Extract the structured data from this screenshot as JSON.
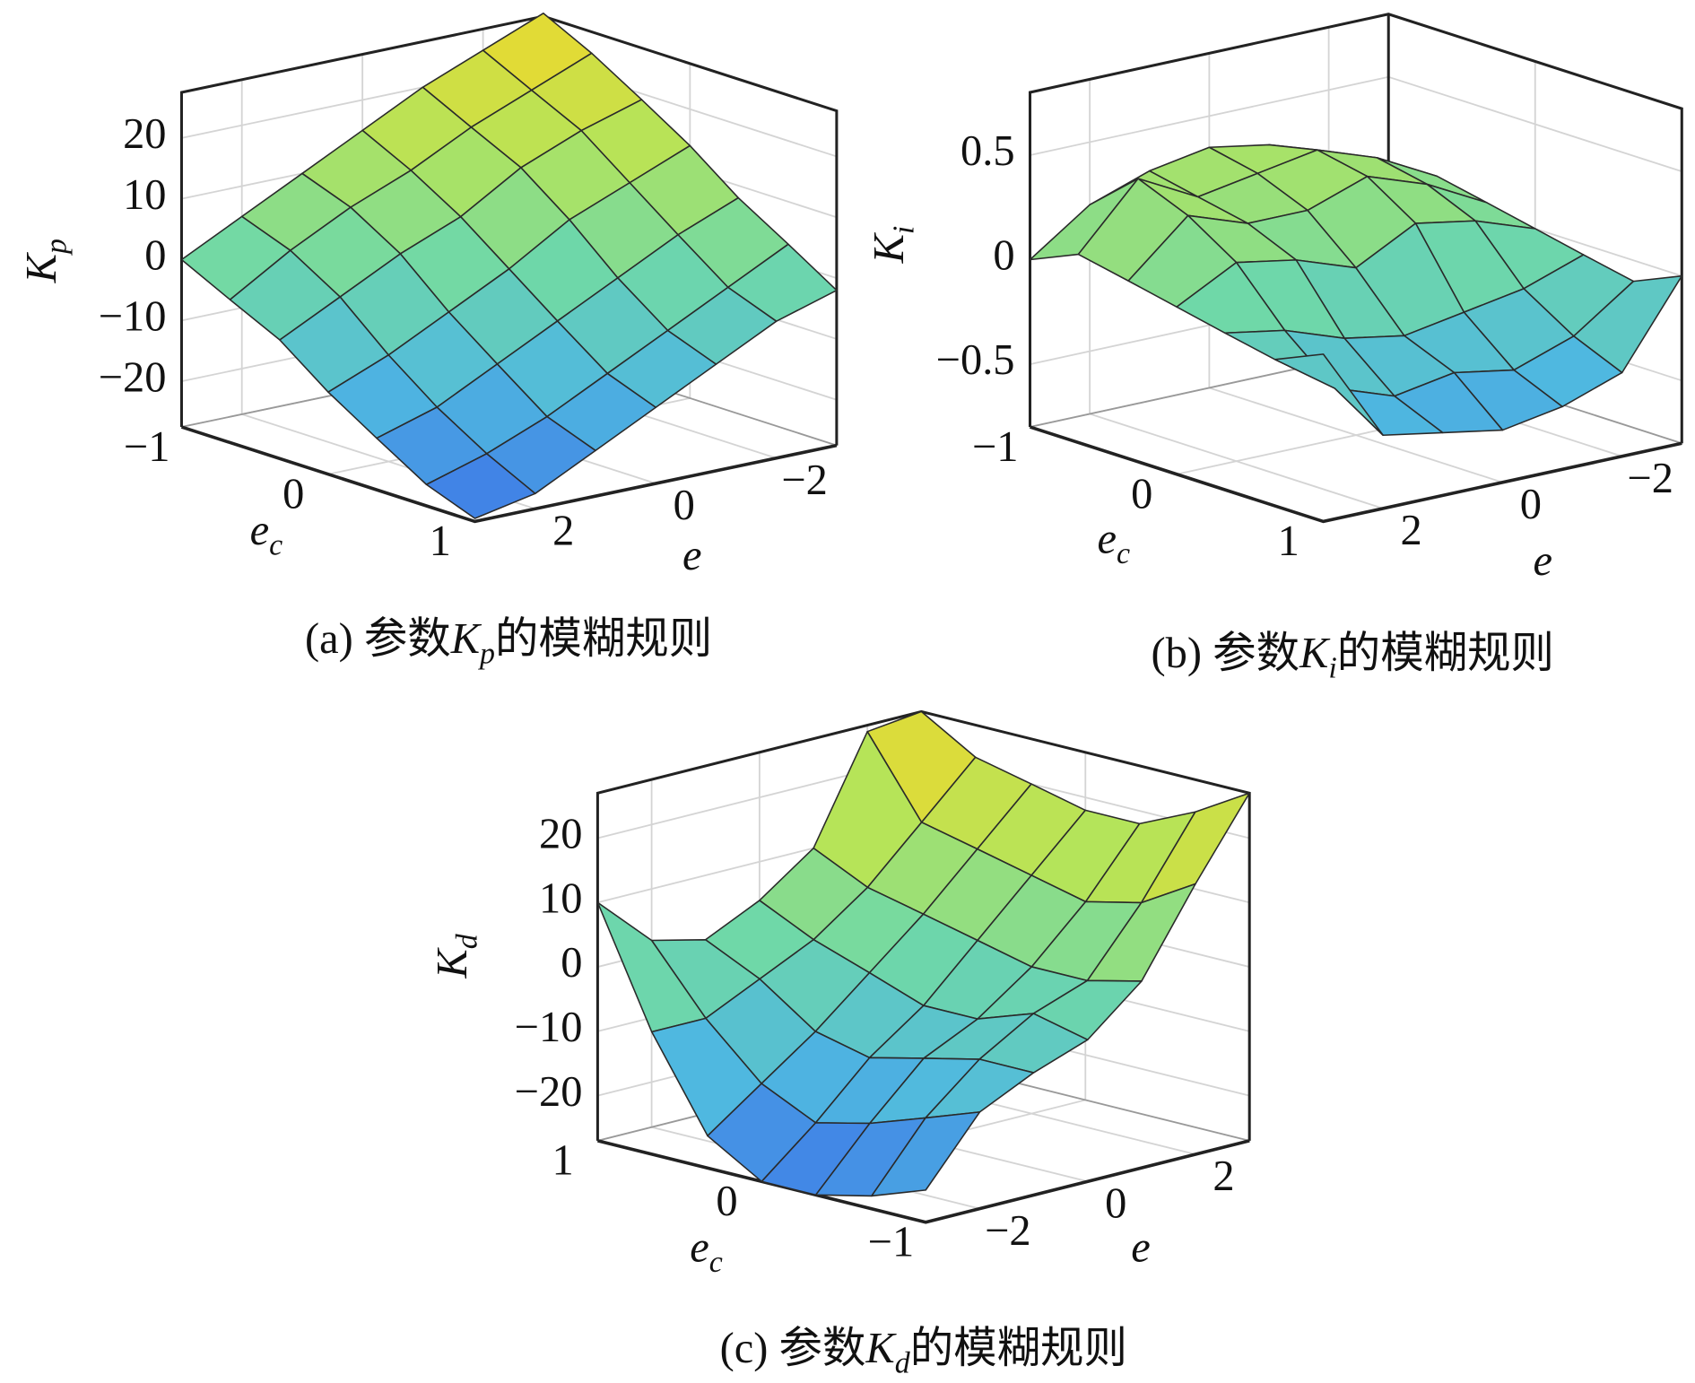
{
  "chart_data": [
    {
      "type": "surface",
      "zlabel": "K",
      "zlabel_sub": "p",
      "xlabel": "e",
      "ylabel": "e",
      "ylabel_sub": "c",
      "caption": [
        "(a) 参数",
        "K",
        "p",
        "的模糊规则"
      ],
      "x": [
        -3,
        -2,
        -1,
        0,
        1,
        2,
        3
      ],
      "y": [
        -1,
        -0.67,
        -0.33,
        0,
        0.33,
        0.67,
        1
      ],
      "z": [
        [
          28,
          24,
          20,
          15,
          10,
          5,
          0
        ],
        [
          24,
          20,
          16,
          11,
          7,
          2,
          -4
        ],
        [
          19,
          16,
          12,
          6,
          2,
          -3,
          -8
        ],
        [
          14,
          10,
          6,
          0,
          -5,
          -10,
          -14
        ],
        [
          8,
          4,
          -1,
          -6,
          -11,
          -16,
          -19
        ],
        [
          3,
          -2,
          -7,
          -12,
          -17,
          -21,
          -24
        ],
        [
          -2,
          -5,
          -10,
          -15,
          -20,
          -25,
          -27
        ]
      ],
      "xlim": [
        3,
        -3
      ],
      "ylim": [
        1,
        -1
      ],
      "zlim": [
        -27.5,
        27.5
      ],
      "xticks": [
        2,
        0,
        {
          "value": -2,
          "label": "−2"
        }
      ],
      "yticks": [
        1,
        0,
        {
          "value": -1,
          "label": "−1"
        }
      ],
      "zticks": [
        {
          "value": -20,
          "label": "−20"
        },
        {
          "value": -10,
          "label": "−10"
        },
        0,
        10,
        20
      ],
      "colormap": [
        "#3d74e8",
        "#4fb8e0",
        "#6fd8a8",
        "#b4e45a",
        "#f0d82a"
      ],
      "grid": true
    },
    {
      "type": "surface",
      "zlabel": "K",
      "zlabel_sub": "i",
      "xlabel": "e",
      "ylabel": "e",
      "ylabel_sub": "c",
      "caption": [
        "(b) 参数",
        "K",
        "i",
        "的模糊规则"
      ],
      "x": [
        -3,
        -2,
        -1,
        0,
        1,
        2,
        3
      ],
      "y": [
        -1,
        -0.67,
        -0.33,
        0,
        0.33,
        0.67,
        1
      ],
      "z": [
        [
          0.05,
          0.2,
          0.3,
          0.35,
          0.3,
          0.2,
          0
        ],
        [
          0.1,
          0.25,
          0.35,
          0.3,
          0.25,
          0.4,
          0.1
        ],
        [
          0.05,
          0.2,
          0.3,
          0.2,
          0.2,
          0.3,
          0.05
        ],
        [
          0,
          0.1,
          0.15,
          0,
          0.1,
          0.15,
          0
        ],
        [
          -0.05,
          -0.15,
          -0.2,
          -0.25,
          -0.2,
          -0.1,
          -0.05
        ],
        [
          -0.1,
          -0.3,
          -0.4,
          -0.35,
          -0.4,
          -0.3,
          -0.1
        ],
        [
          0,
          -0.4,
          -0.5,
          -0.55,
          -0.5,
          -0.45,
          0
        ]
      ],
      "xlim": [
        3,
        -3
      ],
      "ylim": [
        1,
        -1
      ],
      "zlim": [
        -0.8,
        0.8
      ],
      "xticks": [
        2,
        0,
        {
          "value": -2,
          "label": "−2"
        }
      ],
      "yticks": [
        1,
        0,
        {
          "value": -1,
          "label": "−1"
        }
      ],
      "zticks": [
        {
          "value": -0.5,
          "label": "−0.5"
        },
        0,
        0.5
      ],
      "colormap": [
        "#3d74e8",
        "#4fb8e0",
        "#6fd8a8",
        "#b4e45a",
        "#f0d82a"
      ],
      "grid": true
    },
    {
      "type": "surface",
      "zlabel": "K",
      "zlabel_sub": "d",
      "xlabel": "e",
      "ylabel": "e",
      "ylabel_sub": "c",
      "caption": [
        "(c) 参数",
        "K",
        "d",
        "的模糊规则"
      ],
      "x": [
        -3,
        -2,
        -1,
        0,
        1,
        2,
        3
      ],
      "y": [
        -1,
        -0.67,
        -0.33,
        0,
        0.33,
        0.67,
        1
      ],
      "z": [
        [
          -22,
          -12,
          -8,
          -5,
          2,
          15,
          27
        ],
        [
          -25,
          -15,
          -8,
          -3,
          0,
          10,
          22
        ],
        [
          -27,
          -18,
          -10,
          -6,
          0,
          8,
          18
        ],
        [
          -27,
          -20,
          -12,
          -6,
          2,
          10,
          18
        ],
        [
          -22,
          -16,
          -10,
          -3,
          4,
          12,
          20
        ],
        [
          -8,
          -8,
          -4,
          0,
          6,
          14,
          22
        ],
        [
          10,
          2,
          0,
          4,
          10,
          26,
          27
        ]
      ],
      "xlim": [
        -3,
        3
      ],
      "ylim": [
        -1,
        1
      ],
      "zlim": [
        -27,
        27
      ],
      "xticks": [
        {
          "value": -2,
          "label": "−2"
        },
        0,
        2
      ],
      "yticks": [
        {
          "value": -1,
          "label": "−1"
        },
        0,
        1
      ],
      "zticks": [
        {
          "value": -20,
          "label": "−20"
        },
        {
          "value": -10,
          "label": "−10"
        },
        0,
        10,
        20
      ],
      "colormap": [
        "#3d74e8",
        "#4fb8e0",
        "#6fd8a8",
        "#b4e45a",
        "#f0d82a"
      ],
      "grid": true
    }
  ]
}
